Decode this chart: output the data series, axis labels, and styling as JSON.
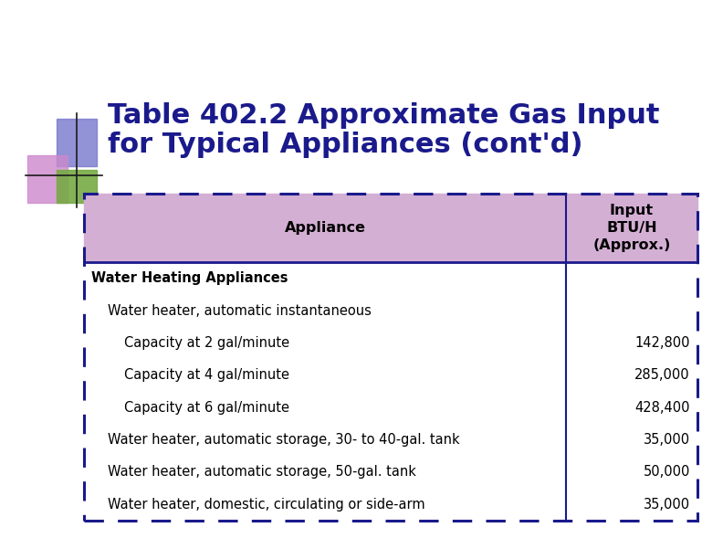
{
  "title_line1": "Table 402.2 Approximate Gas Input",
  "title_line2": "for Typical Appliances (cont'd)",
  "title_color": "#1a1a8c",
  "title_fontsize": 22,
  "bg_color": "#ffffff",
  "header_bg": "#d4afd4",
  "header_text_color": "#000000",
  "table_border_color": "#1a1a8c",
  "col1_header": "Appliance",
  "col2_header": "Input\nBTU/H\n(Approx.)",
  "rows": [
    {
      "label": "Water Heating Appliances",
      "value": "",
      "indent": 0,
      "bold": true
    },
    {
      "label": "Water heater, automatic instantaneous",
      "value": "",
      "indent": 1,
      "bold": false
    },
    {
      "label": "Capacity at 2 gal/minute",
      "value": "142,800",
      "indent": 2,
      "bold": false
    },
    {
      "label": "Capacity at 4 gal/minute",
      "value": "285,000",
      "indent": 2,
      "bold": false
    },
    {
      "label": "Capacity at 6 gal/minute",
      "value": "428,400",
      "indent": 2,
      "bold": false
    },
    {
      "label": "Water heater, automatic storage, 30- to 40-gal. tank",
      "value": "35,000",
      "indent": 1,
      "bold": false
    },
    {
      "label": "Water heater, automatic storage, 50-gal. tank",
      "value": "50,000",
      "indent": 1,
      "bold": false
    },
    {
      "label": "Water heater, domestic, circulating or side-arm",
      "value": "35,000",
      "indent": 1,
      "bold": false
    }
  ],
  "deco_blue": "#7777cc",
  "deco_purple": "#cc88cc",
  "deco_green": "#77aa44",
  "row_text_color": "#000000",
  "body_bg": "#ffffff",
  "table_font_size": 10.5
}
